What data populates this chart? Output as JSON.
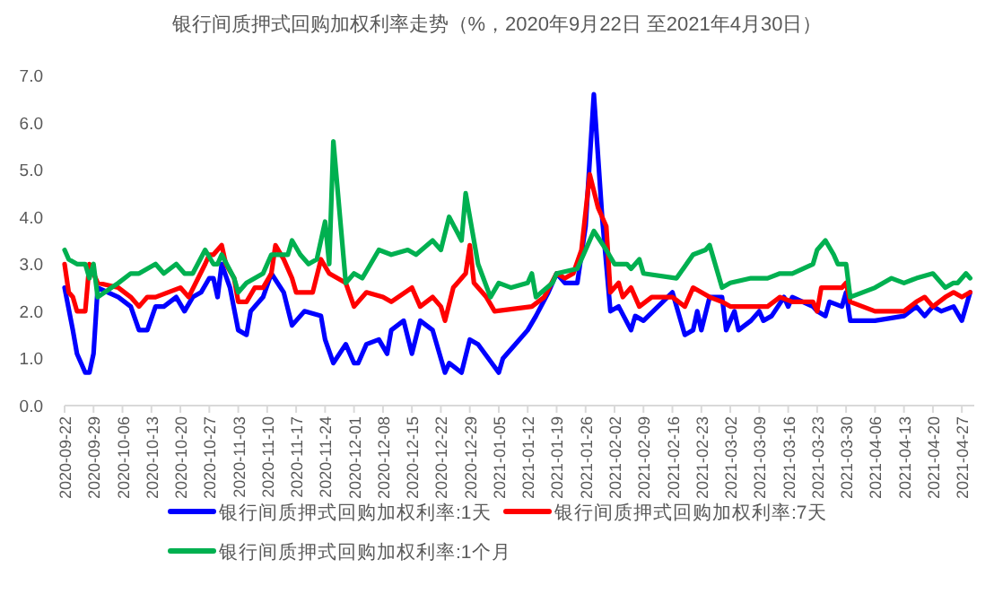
{
  "chart_data": {
    "type": "line",
    "title": "银行间质押式回购加权利率走势（%，2020年9月22日 至2021年4月30日）",
    "ylim": [
      0,
      7
    ],
    "yticks": [
      {
        "value": 0,
        "label": "0.0"
      },
      {
        "value": 1,
        "label": "1.0"
      },
      {
        "value": 2,
        "label": "2.0"
      },
      {
        "value": 3,
        "label": "3.0"
      },
      {
        "value": 4,
        "label": "4.0"
      },
      {
        "value": 5,
        "label": "5.0"
      },
      {
        "value": 6,
        "label": "6.0"
      },
      {
        "value": 7,
        "label": "7.0"
      }
    ],
    "xlim": [
      "2020-09-22",
      "2021-04-30"
    ],
    "xticks": [
      "2020-09-22",
      "2020-09-29",
      "2020-10-06",
      "2020-10-13",
      "2020-10-20",
      "2020-10-27",
      "2020-11-03",
      "2020-11-10",
      "2020-11-17",
      "2020-11-24",
      "2020-12-01",
      "2020-12-08",
      "2020-12-15",
      "2020-12-22",
      "2020-12-29",
      "2021-01-05",
      "2021-01-12",
      "2021-01-19",
      "2021-01-26",
      "2021-02-02",
      "2021-02-09",
      "2021-02-16",
      "2021-02-23",
      "2021-03-02",
      "2021-03-09",
      "2021-03-16",
      "2021-03-23",
      "2021-03-30",
      "2021-04-06",
      "2021-04-13",
      "2021-04-20",
      "2021-04-27"
    ],
    "grid": false,
    "legend": "bottom",
    "marker": "none",
    "line_style": "solid",
    "series": [
      {
        "name": "银行间质押式回购加权利率:1天",
        "color": "#0000ff",
        "x": [
          "2020-09-22",
          "2020-09-24",
          "2020-09-25",
          "2020-09-27",
          "2020-09-28",
          "2020-09-29",
          "2020-09-30",
          "2020-10-05",
          "2020-10-08",
          "2020-10-10",
          "2020-10-12",
          "2020-10-14",
          "2020-10-16",
          "2020-10-19",
          "2020-10-21",
          "2020-10-23",
          "2020-10-25",
          "2020-10-27",
          "2020-10-28",
          "2020-10-29",
          "2020-10-30",
          "2020-11-01",
          "2020-11-03",
          "2020-11-05",
          "2020-11-06",
          "2020-11-09",
          "2020-11-11",
          "2020-11-14",
          "2020-11-16",
          "2020-11-18",
          "2020-11-19",
          "2020-11-23",
          "2020-11-24",
          "2020-11-26",
          "2020-11-29",
          "2020-12-01",
          "2020-12-02",
          "2020-12-04",
          "2020-12-07",
          "2020-12-09",
          "2020-12-10",
          "2020-12-13",
          "2020-12-15",
          "2020-12-17",
          "2020-12-20",
          "2020-12-23",
          "2020-12-24",
          "2020-12-27",
          "2020-12-29",
          "2020-12-31",
          "2021-01-05",
          "2021-01-06",
          "2021-01-09",
          "2021-01-12",
          "2021-01-14",
          "2021-01-17",
          "2021-01-19",
          "2021-01-21",
          "2021-01-24",
          "2021-01-26",
          "2021-01-28",
          "2021-01-30",
          "2021-02-01",
          "2021-02-03",
          "2021-02-06",
          "2021-02-07",
          "2021-02-09",
          "2021-02-16",
          "2021-02-19",
          "2021-02-21",
          "2021-02-22",
          "2021-02-23",
          "2021-02-25",
          "2021-02-28",
          "2021-03-01",
          "2021-03-03",
          "2021-03-04",
          "2021-03-07",
          "2021-03-09",
          "2021-03-10",
          "2021-03-12",
          "2021-03-15",
          "2021-03-16",
          "2021-03-17",
          "2021-03-22",
          "2021-03-23",
          "2021-03-25",
          "2021-03-26",
          "2021-03-29",
          "2021-03-30",
          "2021-03-31",
          "2021-04-06",
          "2021-04-13",
          "2021-04-16",
          "2021-04-18",
          "2021-04-20",
          "2021-04-22",
          "2021-04-25",
          "2021-04-27",
          "2021-04-29"
        ],
        "values": [
          2.5,
          1.6,
          1.1,
          0.7,
          0.7,
          1.1,
          2.5,
          2.3,
          2.1,
          1.6,
          1.6,
          2.1,
          2.1,
          2.3,
          2.0,
          2.3,
          2.4,
          2.7,
          2.7,
          2.3,
          3.0,
          2.5,
          1.6,
          1.5,
          2.0,
          2.3,
          2.8,
          2.4,
          1.7,
          1.9,
          2.0,
          1.9,
          1.4,
          0.9,
          1.3,
          0.9,
          0.9,
          1.3,
          1.4,
          1.1,
          1.6,
          1.8,
          1.1,
          1.8,
          1.6,
          0.7,
          0.9,
          0.7,
          1.4,
          1.3,
          0.7,
          1.0,
          1.3,
          1.6,
          1.9,
          2.4,
          2.8,
          2.6,
          2.6,
          3.8,
          6.6,
          4.0,
          2.0,
          2.1,
          1.6,
          1.9,
          1.8,
          2.4,
          1.5,
          1.6,
          2.0,
          1.6,
          2.3,
          2.3,
          1.6,
          2.0,
          1.6,
          1.8,
          2.0,
          1.8,
          1.9,
          2.3,
          2.1,
          2.3,
          2.1,
          2.0,
          1.9,
          2.2,
          2.1,
          2.4,
          1.8,
          1.8,
          1.9,
          2.1,
          1.9,
          2.1,
          2.0,
          2.1,
          1.8,
          2.4
        ]
      },
      {
        "name": "银行间质押式回购加权利率:7天",
        "color": "#ff0000",
        "x": [
          "2020-09-22",
          "2020-09-23",
          "2020-09-24",
          "2020-09-25",
          "2020-09-27",
          "2020-09-28",
          "2020-09-30",
          "2020-10-05",
          "2020-10-08",
          "2020-10-10",
          "2020-10-12",
          "2020-10-14",
          "2020-10-17",
          "2020-10-20",
          "2020-10-22",
          "2020-10-26",
          "2020-10-27",
          "2020-10-28",
          "2020-10-30",
          "2020-10-31",
          "2020-11-02",
          "2020-11-03",
          "2020-11-05",
          "2020-11-07",
          "2020-11-09",
          "2020-11-11",
          "2020-11-12",
          "2020-11-14",
          "2020-11-16",
          "2020-11-17",
          "2020-11-21",
          "2020-11-23",
          "2020-11-25",
          "2020-11-29",
          "2020-12-01",
          "2020-12-04",
          "2020-12-08",
          "2020-12-10",
          "2020-12-15",
          "2020-12-17",
          "2020-12-20",
          "2020-12-22",
          "2020-12-23",
          "2020-12-25",
          "2020-12-28",
          "2020-12-29",
          "2020-12-30",
          "2021-01-02",
          "2021-01-04",
          "2021-01-13",
          "2021-01-16",
          "2021-01-19",
          "2021-01-21",
          "2021-01-23",
          "2021-01-25",
          "2021-01-27",
          "2021-01-29",
          "2021-01-31",
          "2021-02-01",
          "2021-02-03",
          "2021-02-04",
          "2021-02-06",
          "2021-02-08",
          "2021-02-11",
          "2021-02-16",
          "2021-02-19",
          "2021-02-21",
          "2021-02-23",
          "2021-02-25",
          "2021-02-28",
          "2021-03-02",
          "2021-03-06",
          "2021-03-11",
          "2021-03-14",
          "2021-03-17",
          "2021-03-22",
          "2021-03-23",
          "2021-03-24",
          "2021-03-29",
          "2021-03-30",
          "2021-03-31",
          "2021-04-06",
          "2021-04-13",
          "2021-04-16",
          "2021-04-18",
          "2021-04-20",
          "2021-04-23",
          "2021-04-25",
          "2021-04-27",
          "2021-04-29"
        ],
        "values": [
          3.0,
          2.4,
          2.3,
          2.0,
          2.0,
          3.0,
          2.6,
          2.5,
          2.3,
          2.1,
          2.3,
          2.3,
          2.4,
          2.5,
          2.3,
          3.0,
          3.2,
          3.2,
          3.4,
          3.0,
          2.7,
          2.2,
          2.2,
          2.5,
          2.5,
          2.8,
          3.4,
          3.1,
          2.7,
          2.4,
          2.4,
          3.1,
          2.8,
          2.6,
          2.1,
          2.4,
          2.3,
          2.2,
          2.5,
          2.1,
          2.3,
          2.1,
          1.8,
          2.5,
          2.8,
          3.4,
          2.6,
          2.3,
          2.0,
          2.1,
          2.3,
          2.8,
          2.7,
          2.8,
          3.3,
          4.9,
          4.2,
          3.8,
          2.4,
          2.6,
          2.3,
          2.5,
          2.1,
          2.3,
          2.3,
          2.1,
          2.5,
          2.4,
          2.3,
          2.2,
          2.1,
          2.1,
          2.1,
          2.3,
          2.2,
          2.2,
          2.0,
          2.5,
          2.5,
          2.6,
          2.2,
          2.0,
          2.0,
          2.2,
          2.3,
          2.1,
          2.3,
          2.4,
          2.3,
          2.4
        ]
      },
      {
        "name": "银行间质押式回购加权利率:1个月",
        "color": "#00b050",
        "x": [
          "2020-09-22",
          "2020-09-23",
          "2020-09-25",
          "2020-09-27",
          "2020-09-28",
          "2020-09-29",
          "2020-09-30",
          "2020-10-05",
          "2020-10-08",
          "2020-10-10",
          "2020-10-12",
          "2020-10-14",
          "2020-10-16",
          "2020-10-19",
          "2020-10-21",
          "2020-10-23",
          "2020-10-26",
          "2020-10-28",
          "2020-10-29",
          "2020-10-30",
          "2020-11-02",
          "2020-11-03",
          "2020-11-05",
          "2020-11-09",
          "2020-11-11",
          "2020-11-15",
          "2020-11-16",
          "2020-11-18",
          "2020-11-20",
          "2020-11-22",
          "2020-11-24",
          "2020-11-25",
          "2020-11-26",
          "2020-11-29",
          "2020-12-01",
          "2020-12-03",
          "2020-12-07",
          "2020-12-10",
          "2020-12-14",
          "2020-12-16",
          "2020-12-20",
          "2020-12-22",
          "2020-12-24",
          "2020-12-27",
          "2020-12-28",
          "2020-12-31",
          "2021-01-03",
          "2021-01-05",
          "2021-01-08",
          "2021-01-12",
          "2021-01-13",
          "2021-01-14",
          "2021-01-18",
          "2021-01-19",
          "2021-01-24",
          "2021-01-28",
          "2021-01-31",
          "2021-02-02",
          "2021-02-05",
          "2021-02-06",
          "2021-02-08",
          "2021-02-09",
          "2021-02-17",
          "2021-02-21",
          "2021-02-24",
          "2021-02-25",
          "2021-02-28",
          "2021-03-02",
          "2021-03-07",
          "2021-03-11",
          "2021-03-14",
          "2021-03-17",
          "2021-03-22",
          "2021-03-23",
          "2021-03-25",
          "2021-03-27",
          "2021-03-28",
          "2021-03-30",
          "2021-03-31",
          "2021-04-06",
          "2021-04-10",
          "2021-04-13",
          "2021-04-16",
          "2021-04-20",
          "2021-04-23",
          "2021-04-25",
          "2021-04-26",
          "2021-04-28",
          "2021-04-29"
        ],
        "values": [
          3.3,
          3.1,
          3.0,
          3.0,
          2.7,
          3.0,
          2.3,
          2.6,
          2.8,
          2.8,
          2.9,
          3.0,
          2.8,
          3.0,
          2.8,
          2.8,
          3.3,
          3.0,
          3.0,
          3.2,
          2.7,
          2.4,
          2.6,
          2.8,
          3.2,
          3.2,
          3.5,
          3.2,
          3.0,
          3.1,
          3.9,
          3.0,
          5.6,
          2.6,
          2.8,
          2.7,
          3.3,
          3.2,
          3.3,
          3.2,
          3.5,
          3.3,
          4.0,
          3.5,
          4.5,
          3.0,
          2.3,
          2.6,
          2.5,
          2.6,
          2.8,
          2.3,
          2.6,
          2.8,
          2.9,
          3.7,
          3.3,
          3.0,
          3.0,
          2.9,
          3.1,
          2.8,
          2.7,
          3.2,
          3.3,
          3.4,
          2.5,
          2.6,
          2.7,
          2.7,
          2.8,
          2.8,
          3.0,
          3.3,
          3.5,
          3.2,
          3.0,
          3.0,
          2.3,
          2.5,
          2.7,
          2.6,
          2.7,
          2.8,
          2.5,
          2.6,
          2.6,
          2.8,
          2.7
        ]
      }
    ]
  }
}
